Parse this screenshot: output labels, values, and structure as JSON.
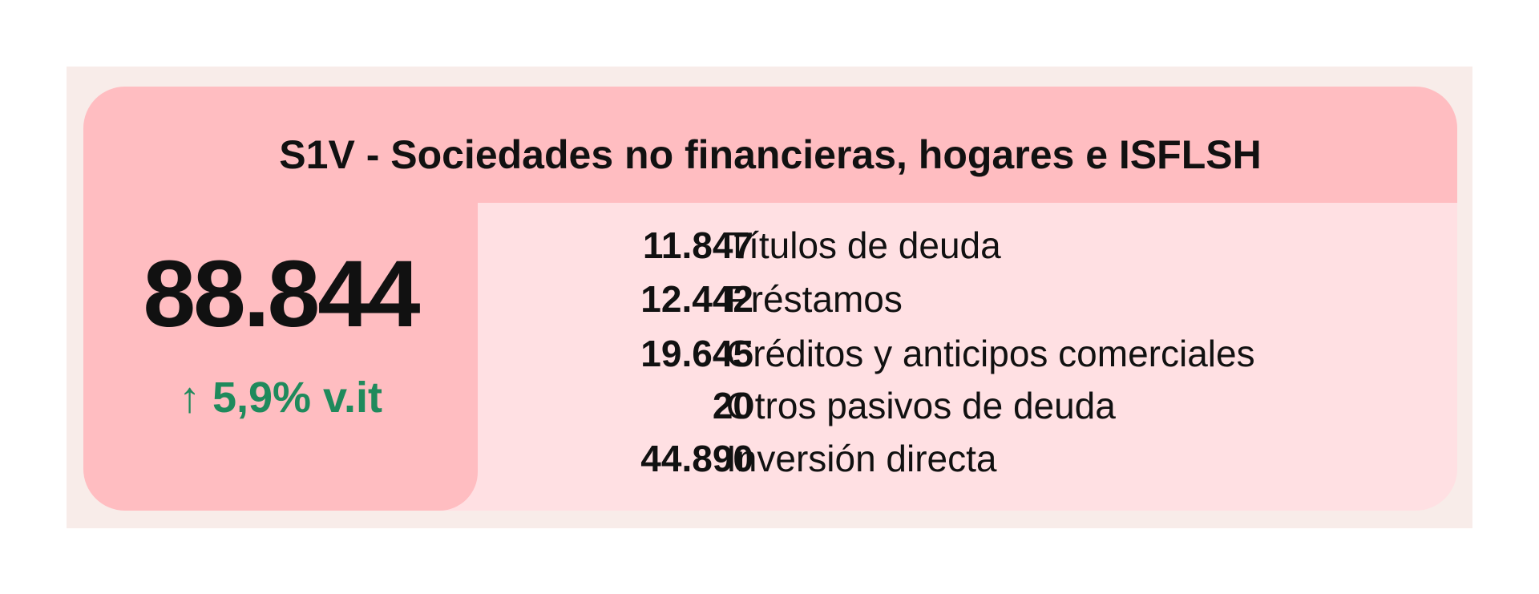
{
  "header": {
    "title": "S1V - Sociedades no financieras, hogares e ISFLSH"
  },
  "summary": {
    "total": "88.844",
    "change": "↑ 5,9% v.it"
  },
  "rows": [
    {
      "value": "11.847",
      "label": "Títulos de deuda"
    },
    {
      "value": "12.442",
      "label": "Préstamos"
    },
    {
      "value": "19.645",
      "label": "Créditos y anticipos comerciales"
    },
    {
      "value": "20",
      "label": "Otros pasivos de deuda"
    },
    {
      "value": "44.890",
      "label": "Inversión directa"
    }
  ]
}
